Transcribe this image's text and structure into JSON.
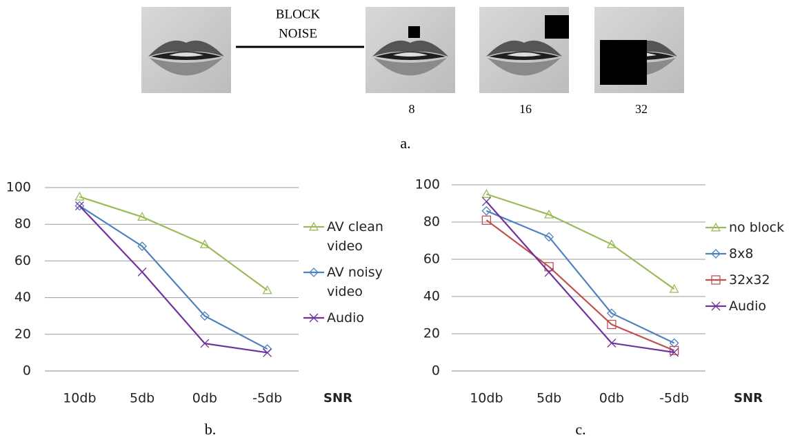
{
  "panel_a": {
    "noise_label": [
      "BLOCK",
      "NOISE"
    ],
    "block_sizes": [
      "8",
      "16",
      "32"
    ]
  },
  "captions": [
    "a.",
    "b.",
    "c."
  ],
  "chart_data": [
    {
      "type": "line",
      "categories": [
        "10db",
        "5db",
        "0db",
        "-5db"
      ],
      "x_label": "SNR",
      "ylim": [
        0,
        100
      ],
      "yticks": [
        0,
        20,
        40,
        60,
        80,
        100
      ],
      "grid": true,
      "legend": "right",
      "series": [
        {
          "name": "AV clean video",
          "color": "#9bbb59",
          "marker": "triangle",
          "values": [
            95,
            84,
            69,
            44
          ]
        },
        {
          "name": "AV noisy video",
          "color": "#4f81bd",
          "marker": "diamond",
          "values": [
            90,
            68,
            30,
            12
          ]
        },
        {
          "name": "Audio",
          "color": "#7030a0",
          "marker": "x",
          "values": [
            90,
            54,
            15,
            10
          ]
        }
      ]
    },
    {
      "type": "line",
      "categories": [
        "10db",
        "5db",
        "0db",
        "-5db"
      ],
      "x_label": "SNR",
      "ylim": [
        0,
        100
      ],
      "yticks": [
        0,
        20,
        40,
        60,
        80,
        100
      ],
      "grid": true,
      "legend": "right",
      "series": [
        {
          "name": "no block",
          "color": "#9bbb59",
          "marker": "triangle",
          "values": [
            95,
            84,
            68,
            44
          ]
        },
        {
          "name": "8x8",
          "color": "#4f81bd",
          "marker": "diamond",
          "values": [
            86,
            72,
            31,
            15
          ]
        },
        {
          "name": "32x32",
          "color": "#c0504d",
          "marker": "square",
          "values": [
            81,
            56,
            25,
            11
          ]
        },
        {
          "name": "Audio",
          "color": "#7030a0",
          "marker": "x",
          "values": [
            91,
            53,
            15,
            10
          ]
        }
      ]
    }
  ]
}
